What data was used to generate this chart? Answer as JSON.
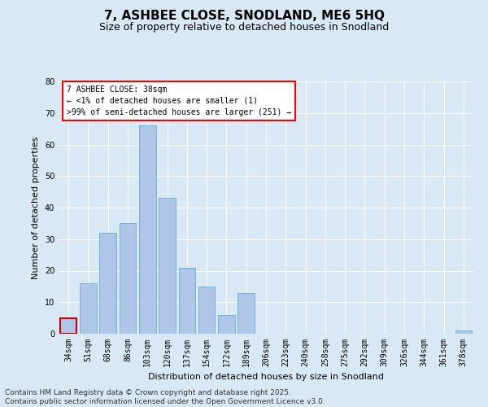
{
  "title": "7, ASHBEE CLOSE, SNODLAND, ME6 5HQ",
  "subtitle": "Size of property relative to detached houses in Snodland",
  "xlabel": "Distribution of detached houses by size in Snodland",
  "ylabel": "Number of detached properties",
  "categories": [
    "34sqm",
    "51sqm",
    "68sqm",
    "86sqm",
    "103sqm",
    "120sqm",
    "137sqm",
    "154sqm",
    "172sqm",
    "189sqm",
    "206sqm",
    "223sqm",
    "240sqm",
    "258sqm",
    "275sqm",
    "292sqm",
    "309sqm",
    "326sqm",
    "344sqm",
    "361sqm",
    "378sqm"
  ],
  "values": [
    5,
    16,
    32,
    35,
    66,
    43,
    21,
    15,
    6,
    13,
    0,
    0,
    0,
    0,
    0,
    0,
    0,
    0,
    0,
    0,
    1
  ],
  "bar_color": "#aec6e8",
  "bar_edge_color": "#6aaad4",
  "highlight_bar_color": "#cc0000",
  "ylim": [
    0,
    80
  ],
  "yticks": [
    0,
    10,
    20,
    30,
    40,
    50,
    60,
    70,
    80
  ],
  "annotation_line1": "7 ASHBEE CLOSE: 38sqm",
  "annotation_line2": "← <1% of detached houses are smaller (1)",
  "annotation_line3": ">99% of semi-detached houses are larger (251) →",
  "footer_text": "Contains HM Land Registry data © Crown copyright and database right 2025.\nContains public sector information licensed under the Open Government Licence v3.0.",
  "background_color": "#d9e8f5",
  "plot_bg_color": "#d9e8f5",
  "grid_color": "#ffffff",
  "title_fontsize": 11,
  "subtitle_fontsize": 9,
  "axis_label_fontsize": 8,
  "tick_fontsize": 7,
  "footer_fontsize": 6.5
}
